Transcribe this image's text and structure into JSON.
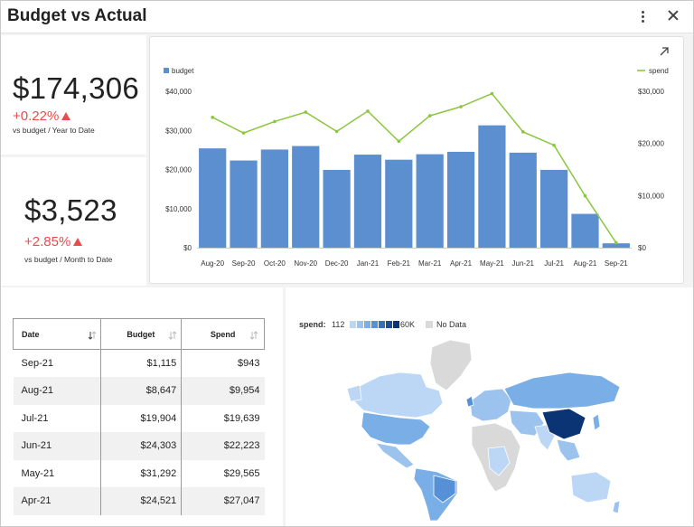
{
  "header": {
    "title": "Budget vs Actual"
  },
  "kpis": [
    {
      "value": "$174,306",
      "change": "+0.22%",
      "subtitle": "vs budget / Year to Date"
    },
    {
      "value": "$3,523",
      "change": "+2.85%",
      "subtitle": "vs budget / Month to Date"
    }
  ],
  "chart_data": {
    "type": "bar",
    "categories": [
      "Aug-20",
      "Sep-20",
      "Oct-20",
      "Nov-20",
      "Dec-20",
      "Jan-21",
      "Feb-21",
      "Mar-21",
      "Apr-21",
      "May-21",
      "Jun-21",
      "Jul-21",
      "Aug-21",
      "Sep-21"
    ],
    "series": [
      {
        "name": "budget",
        "type": "bar",
        "axis": "left",
        "values": [
          25400,
          22300,
          25100,
          26000,
          19900,
          23800,
          22500,
          23900,
          24521,
          31292,
          24303,
          19904,
          8647,
          1115
        ]
      },
      {
        "name": "spend",
        "type": "line",
        "axis": "right",
        "values": [
          25000,
          22000,
          24200,
          26000,
          22300,
          26200,
          20400,
          25300,
          27047,
          29565,
          22223,
          19639,
          9954,
          943
        ]
      }
    ],
    "y_left": {
      "ylim": [
        0,
        40000
      ],
      "ticks": [
        "$0",
        "$10,000",
        "$20,000",
        "$30,000",
        "$40,000"
      ]
    },
    "y_right": {
      "ylim": [
        0,
        30000
      ],
      "ticks": [
        "$0",
        "$10,000",
        "$20,000",
        "$30,000"
      ]
    },
    "legend_left": "top-left",
    "legend_right": "top-right",
    "colors": {
      "budget": "#5b8fd0",
      "spend": "#8cc63f"
    },
    "grid": false
  },
  "table": {
    "columns": [
      "Date",
      "Budget",
      "Spend"
    ],
    "rows": [
      [
        "Sep-21",
        "$1,115",
        "$943"
      ],
      [
        "Aug-21",
        "$8,647",
        "$9,954"
      ],
      [
        "Jul-21",
        "$19,904",
        "$19,639"
      ],
      [
        "Jun-21",
        "$24,303",
        "$22,223"
      ],
      [
        "May-21",
        "$31,292",
        "$29,565"
      ],
      [
        "Apr-21",
        "$24,521",
        "$27,047"
      ]
    ]
  },
  "map": {
    "legend_label": "spend:",
    "min": "112",
    "max": "60K",
    "no_data": "No Data",
    "scale_colors": [
      "#bcd7f5",
      "#9cc3ee",
      "#7aaee6",
      "#5690d6",
      "#346fbc",
      "#1a4f96",
      "#0b3474"
    ],
    "no_data_color": "#d9d9d9"
  },
  "icons": {
    "menu": "kebab-menu-icon",
    "close": "close-icon",
    "expand": "expand-icon",
    "sort": "sort-icon"
  }
}
